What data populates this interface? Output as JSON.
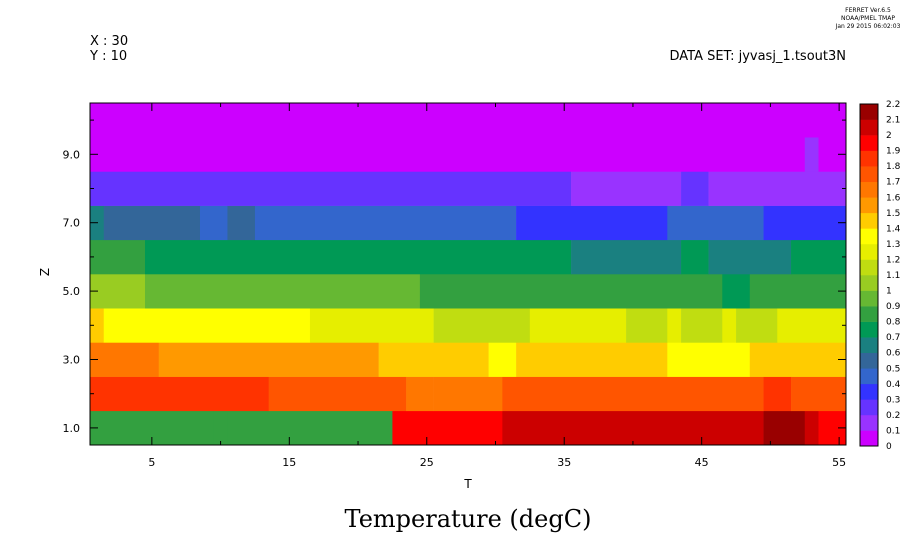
{
  "header": {
    "ferret_version": "FERRET  Ver.6.5",
    "ferret_org": "NOAA/PMEL TMAP",
    "timestamp": "Jan 29 2015 06:02:03",
    "x_info": "X : 30",
    "y_info": "Y : 10",
    "dataset": "DATA SET: jyvasj_1.tsout3N"
  },
  "chart_data": {
    "type": "heatmap",
    "title": "Temperature (degC)",
    "xlabel": "T",
    "ylabel": "Z",
    "xlim": [
      0.5,
      55.5
    ],
    "ylim": [
      0.5,
      10.5
    ],
    "x_ticks": [
      5,
      15,
      25,
      35,
      45,
      55
    ],
    "y_ticks": [
      1.0,
      3.0,
      5.0,
      7.0,
      9.0
    ],
    "colorbar": {
      "levels": [
        0,
        0.1,
        0.2,
        0.3,
        0.4,
        0.5,
        0.6,
        0.7,
        0.8,
        0.9,
        1,
        1.1,
        1.2,
        1.3,
        1.4,
        1.5,
        1.6,
        1.7,
        1.8,
        1.9,
        2,
        2.1,
        2.2
      ],
      "colors": [
        "#cc00ff",
        "#9933ff",
        "#6633ff",
        "#3333ff",
        "#3366cc",
        "#336699",
        "#1a8080",
        "#009955",
        "#33a040",
        "#66b833",
        "#99cc22",
        "#c0dd11",
        "#e6ee00",
        "#ffff00",
        "#ffcc00",
        "#ff9900",
        "#ff7700",
        "#ff5500",
        "#ff3300",
        "#ff0000",
        "#cc0000",
        "#990000"
      ]
    },
    "rows": [
      {
        "z": 1,
        "segments": [
          [
            1,
            1,
            0.83
          ],
          [
            2,
            9,
            0.81
          ],
          [
            10,
            10,
            0.8
          ],
          [
            11,
            22,
            0.82
          ],
          [
            23,
            30,
            1.95
          ],
          [
            31,
            49,
            2.05
          ],
          [
            50,
            52,
            2.15
          ],
          [
            53,
            53,
            2.05
          ],
          [
            54,
            55,
            1.95
          ]
        ]
      },
      {
        "z": 2,
        "segments": [
          [
            1,
            13,
            1.85
          ],
          [
            14,
            23,
            1.75
          ],
          [
            24,
            25,
            1.65
          ],
          [
            26,
            30,
            1.6
          ],
          [
            31,
            49,
            1.75
          ],
          [
            50,
            51,
            1.85
          ],
          [
            52,
            55,
            1.75
          ]
        ]
      },
      {
        "z": 3,
        "segments": [
          [
            1,
            5,
            1.65
          ],
          [
            6,
            21,
            1.55
          ],
          [
            22,
            29,
            1.45
          ],
          [
            30,
            31,
            1.35
          ],
          [
            32,
            42,
            1.45
          ],
          [
            43,
            48,
            1.35
          ],
          [
            49,
            55,
            1.45
          ]
        ]
      },
      {
        "z": 4,
        "segments": [
          [
            1,
            1,
            1.45
          ],
          [
            2,
            16,
            1.35
          ],
          [
            17,
            25,
            1.25
          ],
          [
            26,
            32,
            1.15
          ],
          [
            33,
            39,
            1.25
          ],
          [
            40,
            42,
            1.15
          ],
          [
            43,
            43,
            1.25
          ],
          [
            44,
            46,
            1.15
          ],
          [
            47,
            47,
            1.25
          ],
          [
            48,
            50,
            1.15
          ],
          [
            51,
            55,
            1.25
          ]
        ]
      },
      {
        "z": 5,
        "segments": [
          [
            1,
            4,
            1.05
          ],
          [
            5,
            24,
            0.95
          ],
          [
            25,
            46,
            0.85
          ],
          [
            47,
            48,
            0.75
          ],
          [
            49,
            55,
            0.85
          ]
        ]
      },
      {
        "z": 6,
        "segments": [
          [
            1,
            4,
            0.85
          ],
          [
            5,
            35,
            0.75
          ],
          [
            36,
            43,
            0.65
          ],
          [
            44,
            45,
            0.75
          ],
          [
            46,
            51,
            0.65
          ],
          [
            52,
            55,
            0.75
          ]
        ]
      },
      {
        "z": 7,
        "segments": [
          [
            1,
            1,
            0.65
          ],
          [
            2,
            8,
            0.55
          ],
          [
            9,
            10,
            0.45
          ],
          [
            11,
            12,
            0.55
          ],
          [
            13,
            31,
            0.45
          ],
          [
            32,
            42,
            0.35
          ],
          [
            43,
            49,
            0.45
          ],
          [
            50,
            55,
            0.35
          ]
        ]
      },
      {
        "z": 8,
        "segments": [
          [
            1,
            35,
            0.25
          ],
          [
            36,
            43,
            0.15
          ],
          [
            44,
            45,
            0.25
          ],
          [
            46,
            55,
            0.15
          ]
        ]
      },
      {
        "z": 9,
        "segments": [
          [
            1,
            52,
            0.05
          ],
          [
            53,
            53,
            0.15
          ],
          [
            54,
            55,
            0.05
          ]
        ]
      },
      {
        "z": 10,
        "segments": [
          [
            1,
            55,
            0.05
          ]
        ]
      }
    ]
  }
}
